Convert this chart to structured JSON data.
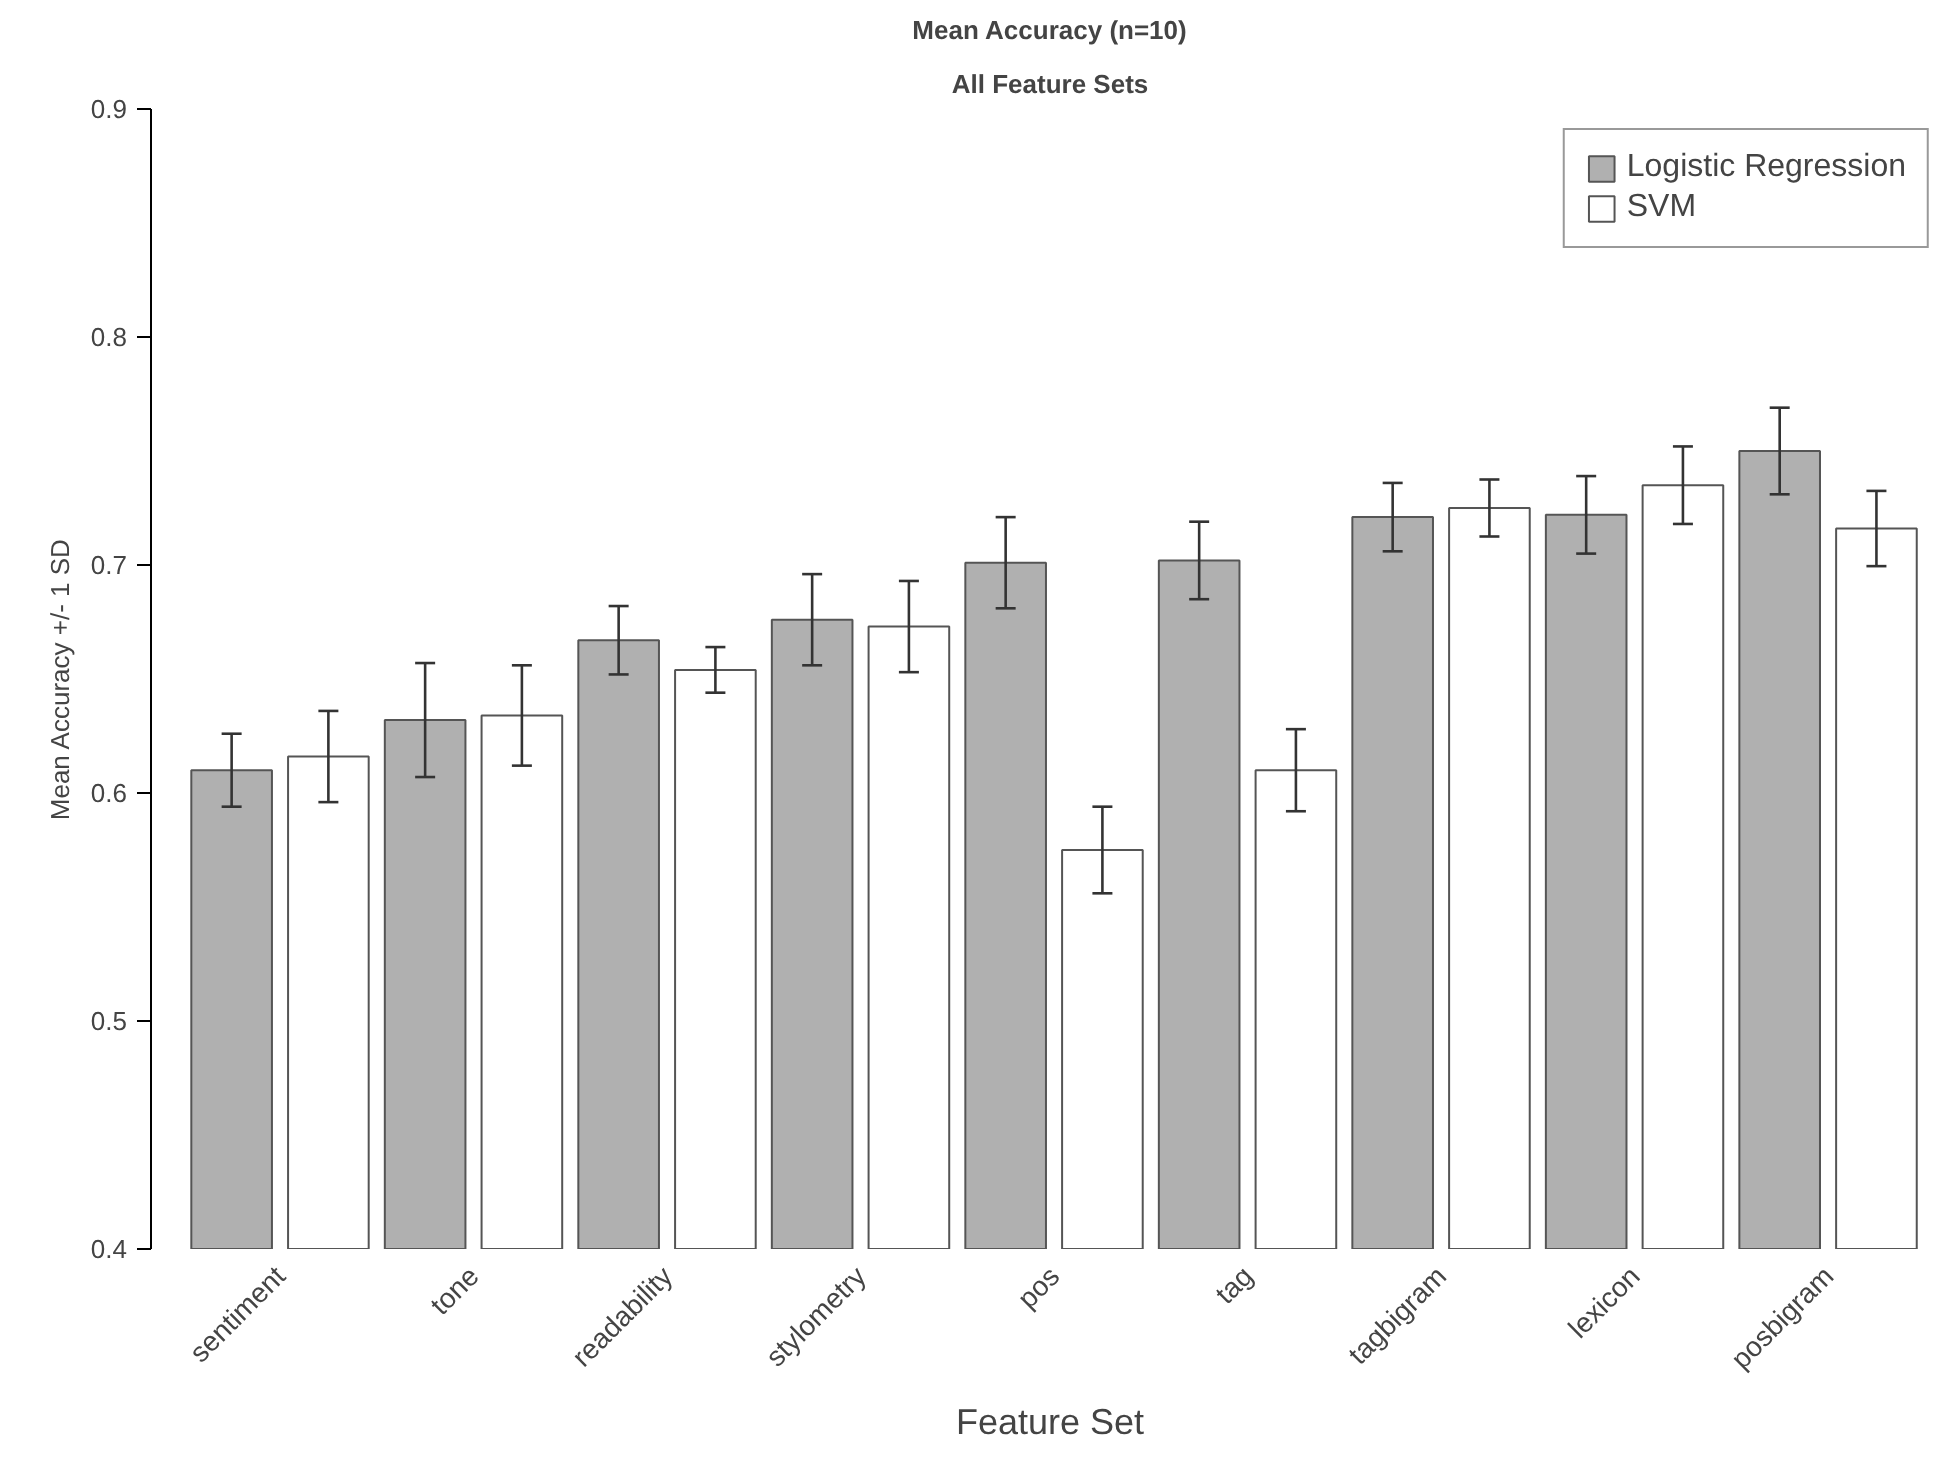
{
  "chart_data": {
    "type": "bar",
    "title": "Mean Accuracy (n=10)",
    "subtitle": "All Feature Sets",
    "xlabel": "Feature Set",
    "ylabel": "Mean Accuracy +/- 1 SD",
    "categories": [
      "sentiment",
      "tone",
      "readability",
      "stylometry",
      "pos",
      "tag",
      "tagbigram",
      "lexicon",
      "posbigram"
    ],
    "series": [
      {
        "name": "Logistic Regression",
        "color": "#b0b0b0",
        "values": [
          0.61,
          0.632,
          0.667,
          0.676,
          0.701,
          0.702,
          0.721,
          0.722,
          0.75
        ],
        "errors": [
          0.016,
          0.025,
          0.015,
          0.02,
          0.02,
          0.017,
          0.015,
          0.017,
          0.019
        ]
      },
      {
        "name": "SVM",
        "color": "#ffffff",
        "values": [
          0.616,
          0.634,
          0.654,
          0.673,
          0.575,
          0.61,
          0.725,
          0.735,
          0.716
        ],
        "errors": [
          0.02,
          0.022,
          0.01,
          0.02,
          0.019,
          0.018,
          0.0125,
          0.017,
          0.0165
        ]
      }
    ],
    "ylim": [
      0.4,
      0.9
    ],
    "yticks": [
      0.4,
      0.5,
      0.6,
      0.7,
      0.8,
      0.9
    ],
    "grid": false,
    "legend": "top right"
  }
}
